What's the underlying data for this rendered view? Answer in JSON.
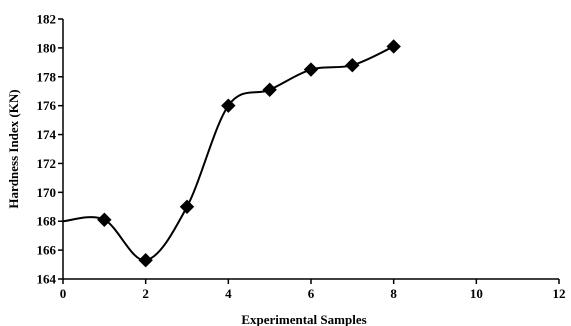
{
  "chart_data": {
    "type": "line",
    "xlabel": "Experimental Samples",
    "ylabel": "Hardness Index (KN)",
    "xlim": [
      0,
      12
    ],
    "ylim": [
      164,
      182
    ],
    "xticks": [
      0,
      2,
      4,
      6,
      8,
      10,
      12
    ],
    "yticks": [
      164,
      166,
      168,
      170,
      172,
      174,
      176,
      178,
      180,
      182
    ],
    "grid": false,
    "legend": "none",
    "line_color": "#000000",
    "smooth": true,
    "series": [
      {
        "x": [
          0,
          1,
          2,
          3,
          4,
          5,
          6,
          7,
          8
        ],
        "y": [
          168.0,
          168.1,
          165.3,
          169.0,
          176.0,
          177.1,
          178.5,
          178.8,
          180.1
        ],
        "marker": "diamond",
        "marked_points": [
          false,
          true,
          true,
          true,
          true,
          true,
          true,
          true,
          true
        ]
      }
    ]
  }
}
